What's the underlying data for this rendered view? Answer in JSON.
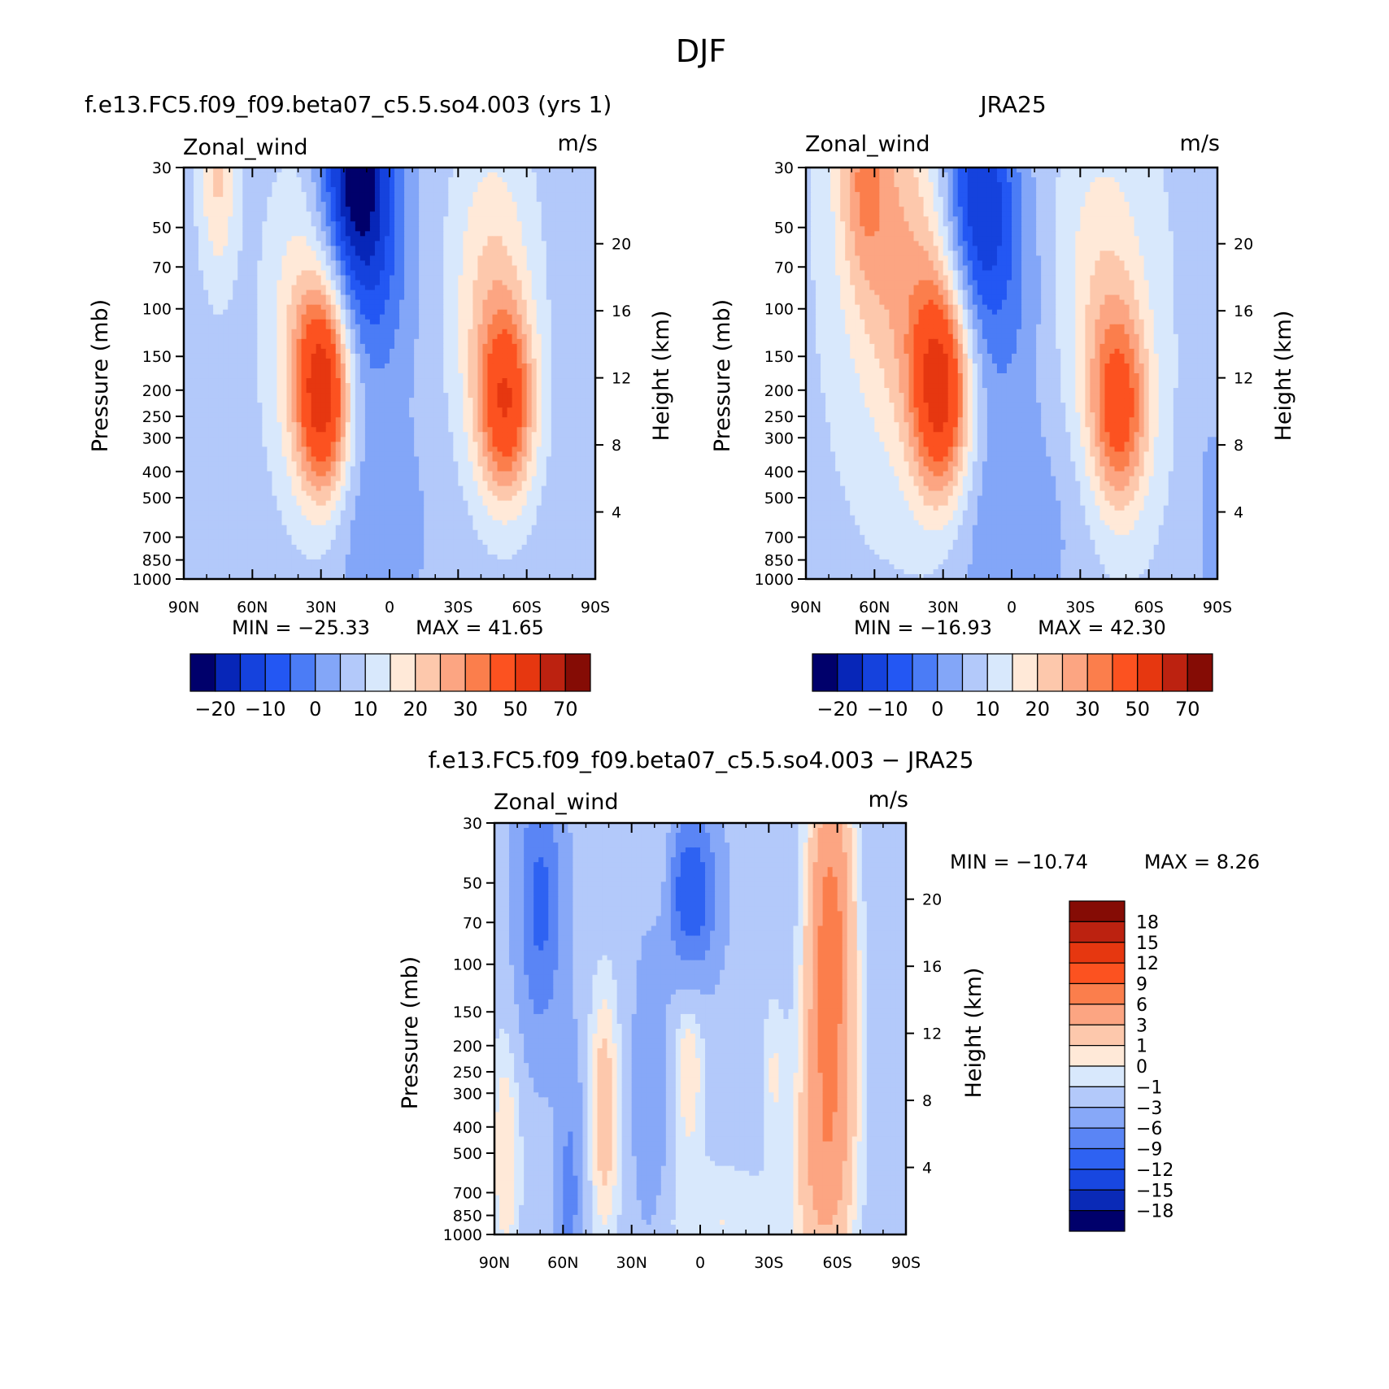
{
  "figure": {
    "title": "DJF"
  },
  "palette": {
    "model_obs": [
      "#00006b",
      "#0726b8",
      "#1542dd",
      "#2357f3",
      "#4b7cf6",
      "#83a6f8",
      "#b3c9fa",
      "#d8e8fc",
      "#ffe9d8",
      "#fdc8ac",
      "#fca582",
      "#fb7e4c",
      "#fc5220",
      "#e63710",
      "#bc2210",
      "#850c05"
    ],
    "difference": [
      "#00006b",
      "#0a2ab7",
      "#1847e0",
      "#2e62f2",
      "#5a85f5",
      "#87a8f8",
      "#b3c9fa",
      "#d8e8fc",
      "#ffe9d8",
      "#fdc8ac",
      "#fca582",
      "#fb7e4c",
      "#fc5220",
      "#e63710",
      "#bc2210",
      "#850c05"
    ]
  },
  "chart_data": [
    {
      "type": "contour",
      "panel": "model",
      "title": "f.e13.FC5.f09_f09.beta07_c5.5.so4.003 (yrs 1)",
      "left_label": "Zonal_wind",
      "right_label": "m/s",
      "ylabel": "Pressure (mb)",
      "ylabel_right": "Height (km)",
      "x_tick_labels": [
        "90N",
        "60N",
        "30N",
        "0",
        "30S",
        "60S",
        "90S"
      ],
      "x_ticks_deg": [
        90,
        60,
        30,
        0,
        -30,
        -60,
        -90
      ],
      "y_tick_labels": [
        "30",
        "50",
        "70",
        "100",
        "150",
        "200",
        "250",
        "300",
        "400",
        "500",
        "700",
        "850",
        "1000"
      ],
      "y_ticks_mb": [
        30,
        50,
        70,
        100,
        150,
        200,
        250,
        300,
        400,
        500,
        700,
        850,
        1000
      ],
      "y_scale": "log",
      "ylim_mb": [
        1000,
        30
      ],
      "height_tick_labels": [
        "4",
        "8",
        "12",
        "16",
        "20"
      ],
      "height_ticks_km": [
        4,
        8,
        12,
        16,
        20
      ],
      "min_text": "MIN = −25.33",
      "max_text": "MAX = 41.65",
      "min": -25.33,
      "max": 41.65,
      "colorbar": {
        "orientation": "horizontal",
        "levels": [
          -25,
          -20,
          -15,
          -10,
          -5,
          0,
          5,
          10,
          15,
          20,
          25,
          30,
          40,
          50,
          60,
          70
        ],
        "tick_labels": [
          "−20",
          "−10",
          "0",
          "10",
          "20",
          "30",
          "50",
          "70"
        ]
      },
      "features": [
        {
          "lat": 29,
          "p": 205,
          "value": 41.65,
          "note": "northern subtropical jet core"
        },
        {
          "lat": -51,
          "p": 230,
          "value": 33,
          "note": "southern jet core"
        },
        {
          "lat": 15,
          "p": 35,
          "value": -25.33,
          "note": "tropical easterlies"
        }
      ]
    },
    {
      "type": "contour",
      "panel": "obs",
      "title": "JRA25",
      "left_label": "Zonal_wind",
      "right_label": "m/s",
      "ylabel": "Pressure (mb)",
      "ylabel_right": "Height (km)",
      "x_tick_labels": [
        "90N",
        "60N",
        "30N",
        "0",
        "30S",
        "60S",
        "90S"
      ],
      "x_ticks_deg": [
        90,
        60,
        30,
        0,
        -30,
        -60,
        -90
      ],
      "y_tick_labels": [
        "30",
        "50",
        "70",
        "100",
        "150",
        "200",
        "250",
        "300",
        "400",
        "500",
        "700",
        "850",
        "1000"
      ],
      "y_ticks_mb": [
        30,
        50,
        70,
        100,
        150,
        200,
        250,
        300,
        400,
        500,
        700,
        850,
        1000
      ],
      "y_scale": "log",
      "ylim_mb": [
        1000,
        30
      ],
      "height_tick_labels": [
        "4",
        "8",
        "12",
        "16",
        "20"
      ],
      "height_ticks_km": [
        4,
        8,
        12,
        16,
        20
      ],
      "min_text": "MIN = −16.93",
      "max_text": "MAX = 42.30",
      "min": -16.93,
      "max": 42.3,
      "colorbar": {
        "orientation": "horizontal",
        "levels": [
          -25,
          -20,
          -15,
          -10,
          -5,
          0,
          5,
          10,
          15,
          20,
          25,
          30,
          40,
          50,
          60,
          70
        ],
        "tick_labels": [
          "−20",
          "−10",
          "0",
          "10",
          "20",
          "30",
          "50",
          "70"
        ]
      },
      "features": [
        {
          "lat": 31,
          "p": 200,
          "value": 42.3,
          "note": "northern subtropical jet core"
        },
        {
          "lat": -47,
          "p": 240,
          "value": 32,
          "note": "southern jet core"
        },
        {
          "lat": 15,
          "p": 35,
          "value": -16.93,
          "note": "tropical easterlies"
        }
      ]
    },
    {
      "type": "contour",
      "panel": "difference",
      "title": "f.e13.FC5.f09_f09.beta07_c5.5.so4.003 − JRA25",
      "left_label": "Zonal_wind",
      "right_label": "m/s",
      "ylabel": "Pressure (mb)",
      "ylabel_right": "Height (km)",
      "x_tick_labels": [
        "90N",
        "60N",
        "30N",
        "0",
        "30S",
        "60S",
        "90S"
      ],
      "x_ticks_deg": [
        90,
        60,
        30,
        0,
        -30,
        -60,
        -90
      ],
      "y_tick_labels": [
        "30",
        "50",
        "70",
        "100",
        "150",
        "200",
        "250",
        "300",
        "400",
        "500",
        "700",
        "850",
        "1000"
      ],
      "y_ticks_mb": [
        30,
        50,
        70,
        100,
        150,
        200,
        250,
        300,
        400,
        500,
        700,
        850,
        1000
      ],
      "y_scale": "log",
      "ylim_mb": [
        1000,
        30
      ],
      "height_tick_labels": [
        "4",
        "8",
        "12",
        "16",
        "20"
      ],
      "height_ticks_km": [
        4,
        8,
        12,
        16,
        20
      ],
      "min_text": "MIN = −10.74",
      "max_text": "MAX = 8.26",
      "min": -10.74,
      "max": 8.26,
      "colorbar": {
        "orientation": "vertical",
        "levels": [
          -18,
          -15,
          -12,
          -9,
          -6,
          -3,
          -1,
          0,
          1,
          3,
          6,
          9,
          12,
          15,
          18
        ],
        "tick_labels": [
          "18",
          "15",
          "12",
          "9",
          "6",
          "3",
          "1",
          "0",
          "−1",
          "−3",
          "−6",
          "−9",
          "−12",
          "−15",
          "−18"
        ]
      },
      "features": [
        {
          "lat": -57,
          "p": 80,
          "value": 8.26,
          "note": "positive bias south of 50S"
        },
        {
          "lat": 4,
          "p": 55,
          "value": -10.74,
          "note": "negative bias upper tropics"
        }
      ]
    }
  ]
}
